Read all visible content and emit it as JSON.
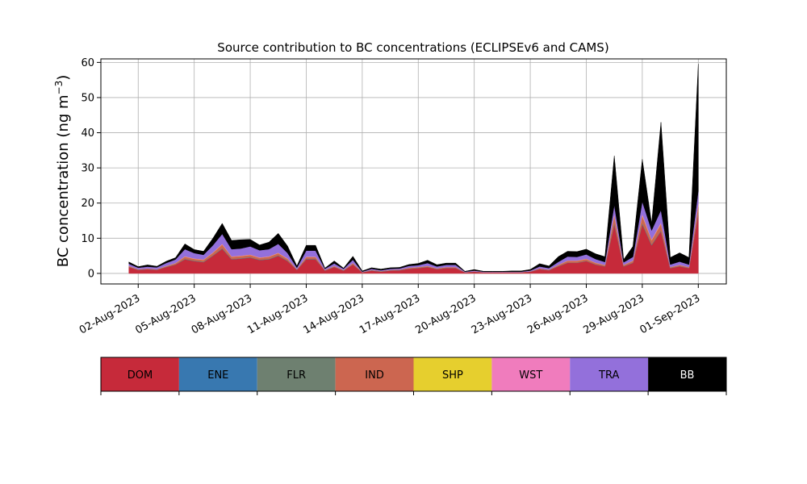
{
  "chart_data": {
    "type": "area",
    "stacked": true,
    "title": "Source contribution to BC concentrations (ECLIPSEv6 and CAMS)",
    "ylabel_main": "BC concentration (ng m",
    "ylabel_sup": "−3",
    "ylabel_close": ")",
    "xlabel": "",
    "ylim": [
      -3,
      61
    ],
    "yticks": [
      0,
      10,
      20,
      30,
      40,
      50,
      60
    ],
    "x_start": "2023-07-31T00:00",
    "x_end": "2023-09-02T12:00",
    "xticks": [
      "2023-08-02",
      "2023-08-05",
      "2023-08-08",
      "2023-08-11",
      "2023-08-14",
      "2023-08-17",
      "2023-08-20",
      "2023-08-23",
      "2023-08-26",
      "2023-08-29",
      "2023-09-01"
    ],
    "xtick_labels": [
      "02-Aug-2023",
      "05-Aug-2023",
      "08-Aug-2023",
      "11-Aug-2023",
      "14-Aug-2023",
      "17-Aug-2023",
      "20-Aug-2023",
      "23-Aug-2023",
      "26-Aug-2023",
      "29-Aug-2023",
      "01-Sep-2023"
    ],
    "grid": true,
    "legend_position": "bottom",
    "series_colors": {
      "DOM": "#c62a3a",
      "ENE": "#3878b0",
      "FLR": "#6e8070",
      "IND": "#cc6650",
      "SHP": "#e6cf2e",
      "WST": "#f07cbd",
      "TRA": "#9370db",
      "BB": "#000000"
    },
    "x": [
      "2023-08-01T12:00",
      "2023-08-02T00:00",
      "2023-08-02T12:00",
      "2023-08-03T00:00",
      "2023-08-03T12:00",
      "2023-08-04T00:00",
      "2023-08-04T12:00",
      "2023-08-05T00:00",
      "2023-08-05T12:00",
      "2023-08-06T00:00",
      "2023-08-06T12:00",
      "2023-08-07T00:00",
      "2023-08-07T12:00",
      "2023-08-08T00:00",
      "2023-08-08T12:00",
      "2023-08-09T00:00",
      "2023-08-09T12:00",
      "2023-08-10T00:00",
      "2023-08-10T12:00",
      "2023-08-11T00:00",
      "2023-08-11T12:00",
      "2023-08-12T00:00",
      "2023-08-12T12:00",
      "2023-08-13T00:00",
      "2023-08-13T12:00",
      "2023-08-14T00:00",
      "2023-08-14T12:00",
      "2023-08-15T00:00",
      "2023-08-15T12:00",
      "2023-08-16T00:00",
      "2023-08-16T12:00",
      "2023-08-17T00:00",
      "2023-08-17T12:00",
      "2023-08-18T00:00",
      "2023-08-18T12:00",
      "2023-08-19T00:00",
      "2023-08-19T12:00",
      "2023-08-20T00:00",
      "2023-08-20T12:00",
      "2023-08-21T00:00",
      "2023-08-21T12:00",
      "2023-08-22T00:00",
      "2023-08-22T12:00",
      "2023-08-23T00:00",
      "2023-08-23T12:00",
      "2023-08-24T00:00",
      "2023-08-24T12:00",
      "2023-08-25T00:00",
      "2023-08-25T12:00",
      "2023-08-26T00:00",
      "2023-08-26T12:00",
      "2023-08-27T00:00",
      "2023-08-27T12:00",
      "2023-08-28T00:00",
      "2023-08-28T12:00",
      "2023-08-29T00:00",
      "2023-08-29T12:00",
      "2023-08-30T00:00",
      "2023-08-30T12:00",
      "2023-08-31T00:00",
      "2023-08-31T12:00",
      "2023-09-01T00:00"
    ],
    "series": [
      {
        "name": "DOM",
        "values": [
          1.8,
          1.0,
          1.2,
          1.0,
          1.8,
          2.5,
          4.0,
          3.5,
          3.2,
          5.0,
          7.0,
          4.0,
          4.2,
          4.5,
          3.8,
          4.0,
          5.0,
          3.5,
          1.0,
          4.0,
          4.0,
          0.8,
          1.8,
          0.8,
          2.5,
          0.3,
          0.8,
          0.5,
          0.8,
          0.9,
          1.3,
          1.5,
          1.8,
          1.2,
          1.5,
          1.5,
          0.3,
          0.5,
          0.3,
          0.3,
          0.3,
          0.3,
          0.3,
          0.5,
          1.2,
          0.9,
          2.0,
          3.0,
          3.0,
          3.5,
          2.5,
          2.0,
          14.0,
          2.0,
          3.0,
          14.0,
          8.0,
          12.0,
          1.5,
          2.0,
          1.5,
          17.0
        ]
      },
      {
        "name": "ENE",
        "values": [
          0.02,
          0.02,
          0.02,
          0.02,
          0.02,
          0.02,
          0.03,
          0.03,
          0.03,
          0.03,
          0.04,
          0.03,
          0.03,
          0.03,
          0.03,
          0.03,
          0.03,
          0.03,
          0.02,
          0.03,
          0.03,
          0.02,
          0.02,
          0.02,
          0.02,
          0.01,
          0.02,
          0.02,
          0.02,
          0.02,
          0.02,
          0.02,
          0.02,
          0.02,
          0.02,
          0.02,
          0.01,
          0.01,
          0.01,
          0.01,
          0.01,
          0.01,
          0.01,
          0.01,
          0.02,
          0.02,
          0.02,
          0.02,
          0.02,
          0.02,
          0.02,
          0.02,
          0.05,
          0.02,
          0.02,
          0.05,
          0.04,
          0.04,
          0.02,
          0.02,
          0.02,
          0.05
        ]
      },
      {
        "name": "FLR",
        "values": [
          0.05,
          0.05,
          0.05,
          0.05,
          0.05,
          0.05,
          0.1,
          0.1,
          0.1,
          0.1,
          0.15,
          0.1,
          0.1,
          0.1,
          0.1,
          0.1,
          0.1,
          0.1,
          0.05,
          0.1,
          0.1,
          0.05,
          0.05,
          0.05,
          0.05,
          0.02,
          0.05,
          0.05,
          0.05,
          0.05,
          0.05,
          0.05,
          0.05,
          0.05,
          0.05,
          0.05,
          0.02,
          0.02,
          0.02,
          0.02,
          0.02,
          0.02,
          0.02,
          0.03,
          0.05,
          0.05,
          0.05,
          0.05,
          0.05,
          0.05,
          0.05,
          0.05,
          0.3,
          0.05,
          0.05,
          0.3,
          0.2,
          0.2,
          0.05,
          0.05,
          0.05,
          0.3
        ]
      },
      {
        "name": "IND",
        "values": [
          0.2,
          0.1,
          0.1,
          0.1,
          0.2,
          0.3,
          0.6,
          0.5,
          0.5,
          0.7,
          1.0,
          0.6,
          0.6,
          0.6,
          0.5,
          0.6,
          0.6,
          0.5,
          0.1,
          0.5,
          0.5,
          0.1,
          0.2,
          0.1,
          0.3,
          0.05,
          0.1,
          0.1,
          0.1,
          0.1,
          0.2,
          0.2,
          0.2,
          0.15,
          0.2,
          0.2,
          0.05,
          0.05,
          0.05,
          0.05,
          0.05,
          0.05,
          0.05,
          0.05,
          0.15,
          0.1,
          0.3,
          0.5,
          0.5,
          0.5,
          0.4,
          0.3,
          2.0,
          0.3,
          0.5,
          2.0,
          1.2,
          1.8,
          0.2,
          0.3,
          0.2,
          2.0
        ]
      },
      {
        "name": "SHP",
        "values": [
          0.03,
          0.02,
          0.02,
          0.02,
          0.03,
          0.04,
          0.06,
          0.05,
          0.05,
          0.06,
          0.08,
          0.05,
          0.05,
          0.05,
          0.05,
          0.05,
          0.06,
          0.05,
          0.02,
          0.05,
          0.05,
          0.02,
          0.03,
          0.02,
          0.04,
          0.01,
          0.02,
          0.02,
          0.02,
          0.02,
          0.03,
          0.03,
          0.03,
          0.02,
          0.03,
          0.03,
          0.01,
          0.01,
          0.01,
          0.01,
          0.01,
          0.01,
          0.01,
          0.01,
          0.02,
          0.02,
          0.04,
          0.05,
          0.05,
          0.05,
          0.04,
          0.03,
          0.2,
          0.03,
          0.05,
          0.2,
          0.1,
          0.15,
          0.02,
          0.03,
          0.02,
          0.2
        ]
      },
      {
        "name": "WST",
        "values": [
          0.05,
          0.03,
          0.03,
          0.03,
          0.05,
          0.06,
          0.1,
          0.1,
          0.1,
          0.1,
          0.15,
          0.1,
          0.1,
          0.1,
          0.1,
          0.1,
          0.1,
          0.1,
          0.03,
          0.1,
          0.1,
          0.02,
          0.05,
          0.02,
          0.06,
          0.01,
          0.02,
          0.02,
          0.02,
          0.02,
          0.03,
          0.03,
          0.04,
          0.03,
          0.03,
          0.03,
          0.01,
          0.01,
          0.01,
          0.01,
          0.01,
          0.01,
          0.01,
          0.01,
          0.03,
          0.02,
          0.05,
          0.07,
          0.07,
          0.08,
          0.06,
          0.05,
          0.4,
          0.05,
          0.07,
          0.4,
          0.2,
          0.3,
          0.03,
          0.05,
          0.03,
          0.5
        ]
      },
      {
        "name": "TRA",
        "values": [
          0.6,
          0.4,
          0.5,
          0.5,
          0.8,
          1.0,
          2.0,
          1.5,
          1.3,
          2.0,
          2.8,
          2.0,
          2.0,
          2.3,
          2.0,
          2.0,
          2.5,
          1.5,
          0.4,
          1.7,
          1.7,
          0.3,
          0.7,
          0.3,
          0.9,
          0.1,
          0.3,
          0.2,
          0.3,
          0.3,
          0.5,
          0.5,
          0.8,
          0.5,
          0.6,
          0.6,
          0.1,
          0.2,
          0.1,
          0.1,
          0.1,
          0.1,
          0.1,
          0.2,
          0.5,
          0.4,
          0.8,
          1.1,
          1.0,
          1.2,
          1.0,
          0.8,
          2.5,
          0.7,
          1.0,
          3.5,
          2.5,
          3.5,
          0.7,
          0.9,
          0.7,
          3.5
        ]
      },
      {
        "name": "BB",
        "values": [
          0.5,
          0.3,
          0.5,
          0.3,
          0.5,
          0.5,
          1.5,
          1.0,
          1.0,
          2.0,
          3.0,
          2.5,
          2.5,
          2.0,
          1.5,
          2.0,
          3.0,
          2.0,
          0.5,
          1.5,
          1.5,
          0.2,
          0.7,
          0.2,
          1.0,
          0.2,
          0.3,
          0.3,
          0.3,
          0.3,
          0.4,
          0.5,
          0.8,
          0.5,
          0.5,
          0.5,
          0.1,
          0.3,
          0.1,
          0.1,
          0.1,
          0.2,
          0.2,
          0.3,
          0.8,
          0.6,
          1.5,
          1.5,
          1.5,
          1.5,
          1.5,
          1.5,
          14.0,
          0.8,
          3.0,
          12.0,
          2.0,
          25.0,
          2.0,
          2.5,
          2.0,
          36.0
        ]
      }
    ]
  },
  "legend": {
    "items": [
      {
        "label": "DOM",
        "color": "#c62a3a",
        "text_color": "#000000"
      },
      {
        "label": "ENE",
        "color": "#3878b0",
        "text_color": "#000000"
      },
      {
        "label": "FLR",
        "color": "#6e8070",
        "text_color": "#000000"
      },
      {
        "label": "IND",
        "color": "#cc6650",
        "text_color": "#000000"
      },
      {
        "label": "SHP",
        "color": "#e6cf2e",
        "text_color": "#000000"
      },
      {
        "label": "WST",
        "color": "#f07cbd",
        "text_color": "#000000"
      },
      {
        "label": "TRA",
        "color": "#9370db",
        "text_color": "#000000"
      },
      {
        "label": "BB",
        "color": "#000000",
        "text_color": "#ffffff"
      }
    ]
  }
}
